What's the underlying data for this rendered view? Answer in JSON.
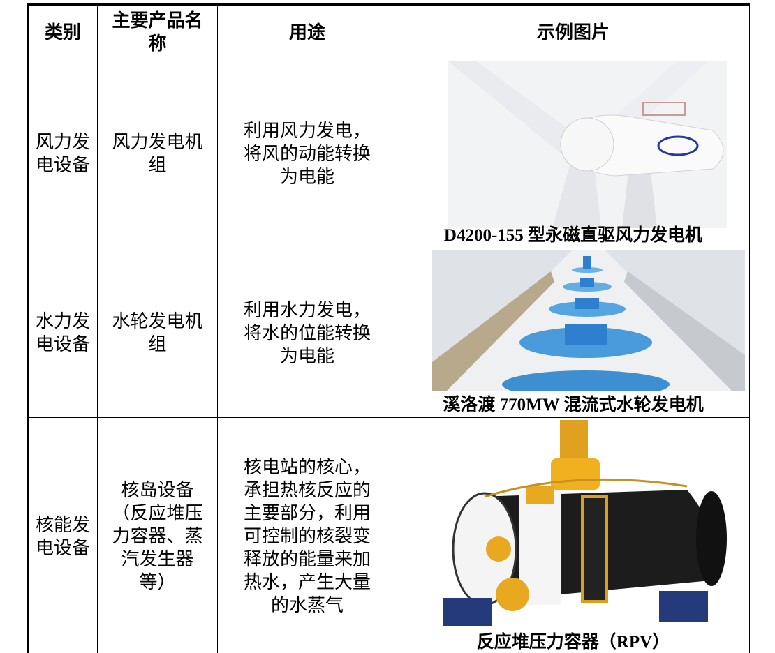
{
  "table": {
    "headers": [
      "类别",
      "主要产品名称",
      "用途",
      "示例图片"
    ],
    "rows": [
      [
        "风力发电设备",
        "风力发电机组",
        "利用风力发电，将风的动能转换为电能",
        "D4200-155 型永磁直驱风力发电机"
      ],
      [
        "水力发电设备",
        "水轮发电机组",
        "利用水力发电，将水的位能转换为电能",
        "溪洛渡 770MW 混流式水轮发电机"
      ],
      [
        "核能发电设备",
        "核岛设备\n（反应堆压力容器、蒸汽发生器等）",
        "核电站的核心，承担热核反应的主要部分，利用可控制的核裂变释放的能量来加热水，产生大量的水蒸气",
        "反应堆压力容器（RPV）"
      ]
    ]
  }
}
